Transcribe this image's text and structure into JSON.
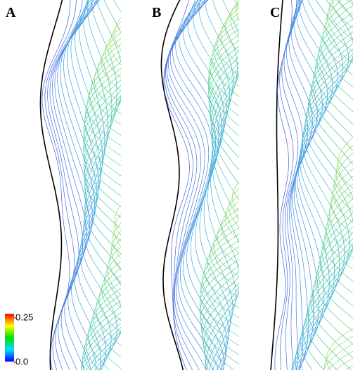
{
  "panels": [
    {
      "label": "A"
    },
    {
      "label": "B"
    },
    {
      "label": "C"
    }
  ],
  "colorbar": {
    "ticks": [
      {
        "value": 0,
        "label": "0.0"
      },
      {
        "value": 0.25,
        "label": "0.25"
      }
    ]
  }
}
